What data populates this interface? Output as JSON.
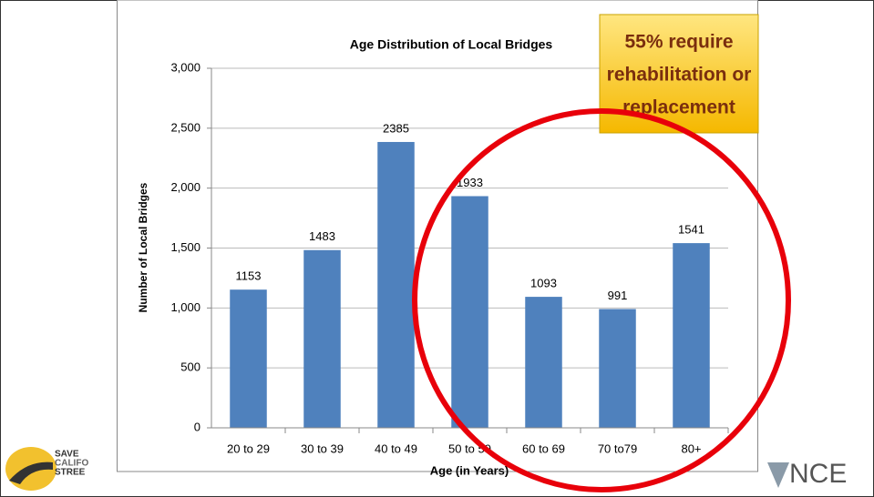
{
  "chart_data": {
    "type": "bar",
    "title": "Age Distribution of Local Bridges",
    "x_label": "Age (in Years)",
    "y_label": "Number of Local Bridges",
    "categories": [
      "20 to 29",
      "30 to 39",
      "40 to 49",
      "50 to 59",
      "60 to 69",
      "70 to79",
      "80+"
    ],
    "values": [
      1153,
      1483,
      2385,
      1933,
      1093,
      991,
      1541
    ],
    "color": "#4f81bd",
    "ylim": [
      0,
      3000
    ],
    "yticks": [
      0,
      500,
      {
        "value": 1000,
        "label": "1,000"
      },
      {
        "value": 1500,
        "label": "1,500"
      },
      {
        "value": 2000,
        "label": "2,000"
      },
      {
        "value": 2500,
        "label": "2,500"
      },
      {
        "value": 3000,
        "label": "3,000"
      }
    ],
    "grid": true,
    "annotation": [
      "55% require",
      "rehabilitation or",
      "replacement"
    ]
  },
  "logos": {
    "left": [
      "SAVE",
      "CALIFO",
      "STREE"
    ],
    "right": "NCE"
  }
}
